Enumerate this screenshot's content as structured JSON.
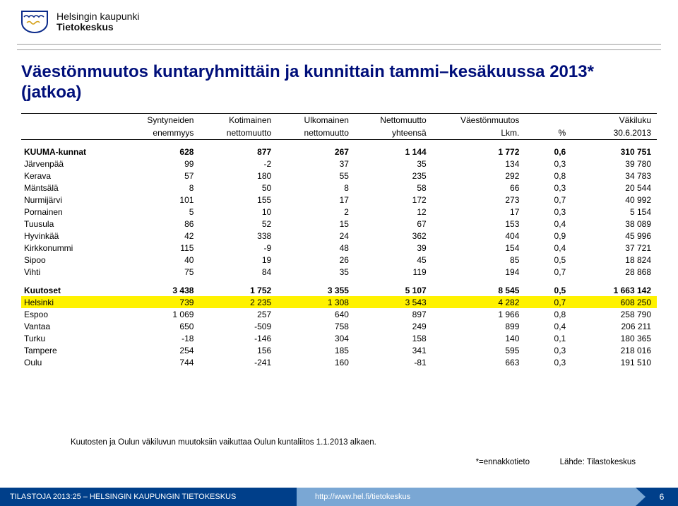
{
  "logo": {
    "line1": "Helsingin kaupunki",
    "line2": "Tietokeskus"
  },
  "title": "Väestönmuutos kuntaryhmittäin ja kunnittain tammi–kesäkuussa 2013* (jatkoa)",
  "columns": [
    {
      "l1": "",
      "l2": ""
    },
    {
      "l1": "Syntyneiden",
      "l2": "enemmyys"
    },
    {
      "l1": "Kotimainen",
      "l2": "nettomuutto"
    },
    {
      "l1": "Ulkomainen",
      "l2": "nettomuutto"
    },
    {
      "l1": "Nettomuutto",
      "l2": "yhteensä"
    },
    {
      "l1": "Väestönmuutos",
      "l2": "Lkm."
    },
    {
      "l1": "",
      "l2": "%"
    },
    {
      "l1": "Väkiluku",
      "l2": "30.6.2013"
    }
  ],
  "rows": [
    {
      "section": true,
      "bold": true,
      "name": "KUUMA-kunnat",
      "v": [
        "628",
        "877",
        "267",
        "1 144",
        "1 772",
        "0,6",
        "310 751"
      ]
    },
    {
      "name": "Järvenpää",
      "v": [
        "99",
        "-2",
        "37",
        "35",
        "134",
        "0,3",
        "39 780"
      ]
    },
    {
      "name": "Kerava",
      "v": [
        "57",
        "180",
        "55",
        "235",
        "292",
        "0,8",
        "34 783"
      ]
    },
    {
      "name": "Mäntsälä",
      "v": [
        "8",
        "50",
        "8",
        "58",
        "66",
        "0,3",
        "20 544"
      ]
    },
    {
      "name": "Nurmijärvi",
      "v": [
        "101",
        "155",
        "17",
        "172",
        "273",
        "0,7",
        "40 992"
      ]
    },
    {
      "name": "Pornainen",
      "v": [
        "5",
        "10",
        "2",
        "12",
        "17",
        "0,3",
        "5 154"
      ]
    },
    {
      "name": "Tuusula",
      "v": [
        "86",
        "52",
        "15",
        "67",
        "153",
        "0,4",
        "38 089"
      ]
    },
    {
      "name": "Hyvinkää",
      "v": [
        "42",
        "338",
        "24",
        "362",
        "404",
        "0,9",
        "45 996"
      ]
    },
    {
      "name": "Kirkkonummi",
      "v": [
        "115",
        "-9",
        "48",
        "39",
        "154",
        "0,4",
        "37 721"
      ]
    },
    {
      "name": "Sipoo",
      "v": [
        "40",
        "19",
        "26",
        "45",
        "85",
        "0,5",
        "18 824"
      ]
    },
    {
      "name": "Vihti",
      "v": [
        "75",
        "84",
        "35",
        "119",
        "194",
        "0,7",
        "28 868"
      ]
    },
    {
      "section": true,
      "bold": true,
      "name": "Kuutoset",
      "v": [
        "3 438",
        "1 752",
        "3 355",
        "5 107",
        "8 545",
        "0,5",
        "1 663 142"
      ]
    },
    {
      "hl": true,
      "name": "Helsinki",
      "v": [
        "739",
        "2 235",
        "1 308",
        "3 543",
        "4 282",
        "0,7",
        "608 250"
      ]
    },
    {
      "name": "Espoo",
      "v": [
        "1 069",
        "257",
        "640",
        "897",
        "1 966",
        "0,8",
        "258 790"
      ]
    },
    {
      "name": "Vantaa",
      "v": [
        "650",
        "-509",
        "758",
        "249",
        "899",
        "0,4",
        "206 211"
      ]
    },
    {
      "name": "Turku",
      "v": [
        "-18",
        "-146",
        "304",
        "158",
        "140",
        "0,1",
        "180 365"
      ]
    },
    {
      "name": "Tampere",
      "v": [
        "254",
        "156",
        "185",
        "341",
        "595",
        "0,3",
        "218 016"
      ]
    },
    {
      "name": "Oulu",
      "v": [
        "744",
        "-241",
        "160",
        "-81",
        "663",
        "0,3",
        "191 510"
      ]
    }
  ],
  "footnote": "Kuutosten ja Oulun väkiluvun muutoksiin vaikuttaa Oulun kuntaliitos 1.1.2013 alkaen.",
  "note2": "*=ennakkotieto",
  "source": "Lähde: Tilastokeskus",
  "footer": {
    "left": "TILASTOJA 2013:25 – HELSINGIN KAUPUNGIN TIETOKESKUS",
    "mid": "http://www.hel.fi/tietokeskus",
    "page": "6"
  },
  "colors": {
    "title": "#000f7a",
    "footer_dark": "#003f8a",
    "footer_light": "#7aa7d4",
    "highlight": "#fff200"
  }
}
